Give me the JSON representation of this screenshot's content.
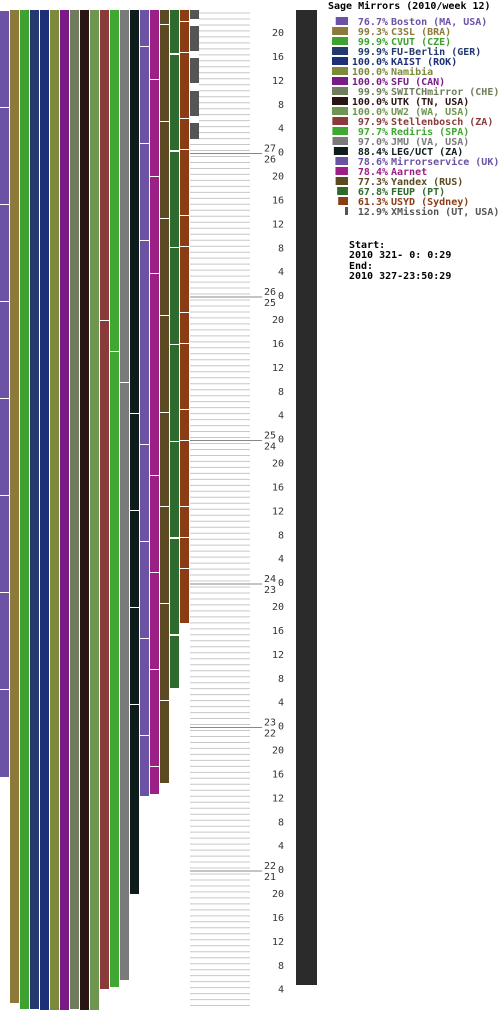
{
  "chart_data": {
    "type": "bar",
    "title": "Sage Mirrors (2010/week 12)",
    "series": [
      {
        "name": "Boston (MA, USA)",
        "value": 76.7,
        "pct": "76.7%",
        "color": "#6b52a5"
      },
      {
        "name": "C3SL (BRA)",
        "value": 99.3,
        "pct": "99.3%",
        "color": "#8c7a3a"
      },
      {
        "name": "CVUT (CZE)",
        "value": 99.9,
        "pct": "99.9%",
        "color": "#3da22f"
      },
      {
        "name": "FU-Berlin (GER)",
        "value": 99.9,
        "pct": "99.9%",
        "color": "#243a6e"
      },
      {
        "name": "KAIST (ROK)",
        "value": 100.0,
        "pct": "100.0%",
        "color": "#1e2f78"
      },
      {
        "name": "Namibia",
        "value": 100.0,
        "pct": "100.0%",
        "color": "#7c8a3a"
      },
      {
        "name": "SFU (CAN)",
        "value": 100.0,
        "pct": "100.0%",
        "color": "#7a1a86"
      },
      {
        "name": "SWITCHmirror (CHE)",
        "value": 99.9,
        "pct": "99.9%",
        "color": "#6f7d5c"
      },
      {
        "name": "UTK (TN, USA)",
        "value": 100.0,
        "pct": "100.0%",
        "color": "#2a1414"
      },
      {
        "name": "UW2 (WA, USA)",
        "value": 100.0,
        "pct": "100.0%",
        "color": "#6e9650"
      },
      {
        "name": "Stellenbosch (ZA)",
        "value": 97.9,
        "pct": "97.9%",
        "color": "#8a3a3a"
      },
      {
        "name": "Rediris (SPA)",
        "value": 97.7,
        "pct": "97.7%",
        "color": "#3fa833"
      },
      {
        "name": "JMU (VA, USA)",
        "value": 97.0,
        "pct": "97.0%",
        "color": "#7a7a7a"
      },
      {
        "name": "LEG/UCT (ZA)",
        "value": 88.4,
        "pct": "88.4%",
        "color": "#0e1c1c"
      },
      {
        "name": "Mirrorservice (UK)",
        "value": 78.6,
        "pct": "78.6%",
        "color": "#6b52a5"
      },
      {
        "name": "Aarnet",
        "value": 78.4,
        "pct": "78.4%",
        "color": "#9c1f86"
      },
      {
        "name": "Yandex (RUS)",
        "value": 77.3,
        "pct": "77.3%",
        "color": "#5c4a22"
      },
      {
        "name": "FEUP (PT)",
        "value": 67.8,
        "pct": "67.8%",
        "color": "#2e6a2e"
      },
      {
        "name": "USYD (Sydney)",
        "value": 61.3,
        "pct": "61.3%",
        "color": "#8a3c14"
      },
      {
        "name": "XMission (UT, USA)",
        "value": 12.9,
        "pct": "12.9%",
        "color": "#555555"
      }
    ],
    "time_axis": {
      "hour_ticks": [
        "20",
        "16",
        "12",
        "8",
        "4",
        "0"
      ],
      "day_labels": [
        "27",
        "26",
        "25",
        "24",
        "23",
        "22",
        "21"
      ]
    },
    "start_label": "Start:",
    "start_value": "2010 321- 0: 0:29",
    "end_label": "End:",
    "end_value": "2010 327-23:50:29",
    "grid": true
  }
}
